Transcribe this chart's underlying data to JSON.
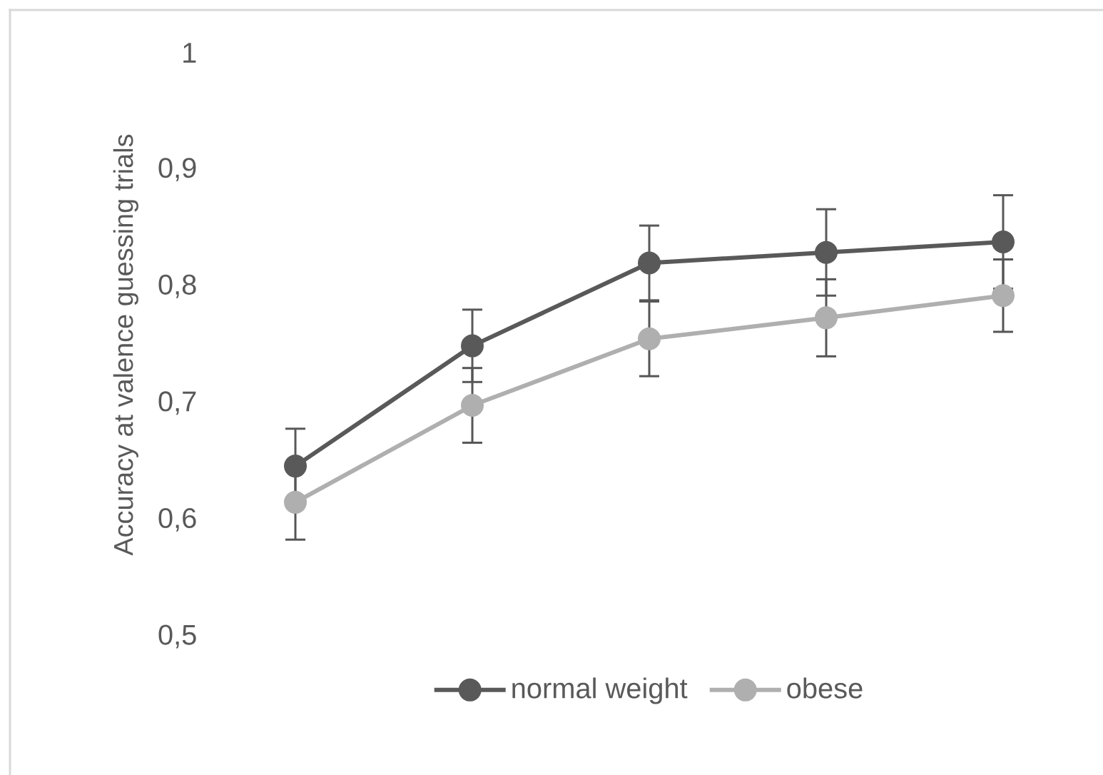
{
  "chart_data": {
    "type": "line",
    "ylabel": "Accuracy at valence guessing trials",
    "categories": [
      null,
      null,
      null,
      null,
      null
    ],
    "series": [
      {
        "name": "normal weight",
        "color": "#595959",
        "values": [
          0.646,
          0.749,
          0.82,
          0.829,
          0.838
        ],
        "errors": [
          0.032,
          0.031,
          0.032,
          0.037,
          0.04
        ]
      },
      {
        "name": "obese",
        "color": "#afafaf",
        "values": [
          0.615,
          0.698,
          0.755,
          0.773,
          0.792
        ],
        "errors": [
          0.032,
          0.032,
          0.032,
          0.033,
          0.031
        ]
      }
    ],
    "ylim": [
      0.5,
      1
    ],
    "yticks": [
      {
        "value": 0.5,
        "label": "0,5"
      },
      {
        "value": 0.6,
        "label": "0,6"
      },
      {
        "value": 0.7,
        "label": "0,7"
      },
      {
        "value": 0.8,
        "label": "0,8"
      },
      {
        "value": 0.9,
        "label": "0,9"
      },
      1
    ],
    "grid": false,
    "legend": "bottom",
    "marker": "circle",
    "line_style": "solid"
  }
}
